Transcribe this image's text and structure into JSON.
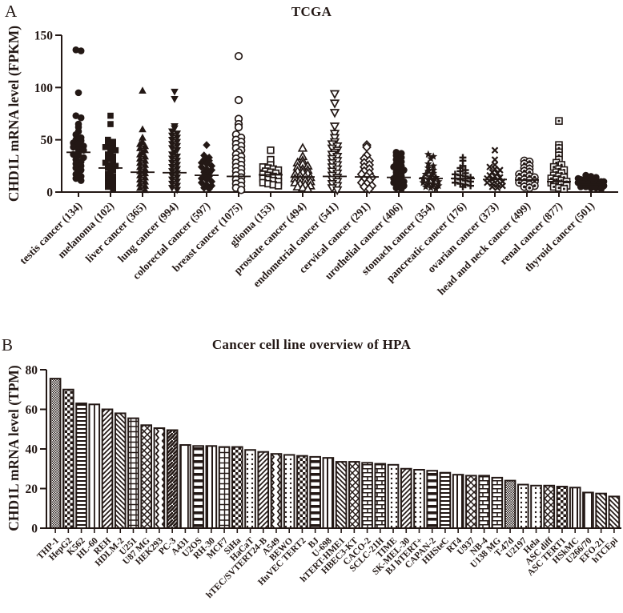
{
  "ink_color": "#231815",
  "chart_data": [
    {
      "type": "scatter",
      "panel_label": "A",
      "title": "TCGA",
      "ylabel": "CHD1L mRNA level (FPKM)",
      "ylim": [
        0,
        150
      ],
      "yticks": [
        0,
        50,
        100,
        150
      ],
      "legend": "none",
      "grid": false,
      "series": [
        {
          "category": "testis cancer (134)",
          "marker": "circle-filled",
          "median": 38,
          "values": [
            136,
            135,
            95,
            73,
            71,
            65,
            62,
            58,
            55,
            52,
            50,
            49,
            47,
            46,
            44,
            43,
            41,
            40,
            38,
            36,
            35,
            33,
            31,
            29,
            27,
            25,
            23,
            21,
            19,
            17,
            15,
            13,
            11
          ]
        },
        {
          "category": "melanoma (102)",
          "marker": "square-filled",
          "median": 23,
          "values": [
            73,
            65,
            50,
            48,
            46,
            45,
            43,
            42,
            40,
            38,
            36,
            34,
            32,
            30,
            28,
            26,
            25,
            23,
            21,
            19,
            17,
            15,
            13,
            11,
            9,
            7,
            5,
            3
          ]
        },
        {
          "category": "liver cancer (365)",
          "marker": "triangle-up-filled",
          "median": 19,
          "values": [
            97,
            60,
            52,
            48,
            46,
            44,
            42,
            40,
            38,
            36,
            34,
            32,
            30,
            28,
            26,
            24,
            22,
            20,
            18,
            16,
            14,
            12,
            10,
            8,
            6,
            4,
            2
          ]
        },
        {
          "category": "lung cancer (994)",
          "marker": "triangle-down-filled",
          "median": 18.5,
          "values": [
            96,
            89,
            63,
            61,
            58,
            56,
            54,
            52,
            50,
            48,
            46,
            44,
            42,
            40,
            38,
            36,
            34,
            32,
            30,
            28,
            26,
            24,
            22,
            20,
            18,
            16,
            14,
            12,
            10,
            8,
            6,
            4,
            2
          ]
        },
        {
          "category": "colorectal cancer (597)",
          "marker": "diamond-filled",
          "median": 16,
          "values": [
            45,
            35,
            33,
            31,
            30,
            28,
            27,
            25,
            24,
            22,
            21,
            19,
            18,
            16,
            15,
            13,
            12,
            10,
            9,
            7,
            6,
            4,
            3
          ]
        },
        {
          "category": "breast cancer (1075)",
          "marker": "circle-open",
          "median": 15,
          "values": [
            130,
            88,
            70,
            65,
            62,
            55,
            52,
            50,
            48,
            46,
            44,
            42,
            40,
            38,
            36,
            34,
            32,
            30,
            28,
            26,
            24,
            22,
            20,
            18,
            16,
            14,
            12,
            10,
            8,
            6,
            4,
            2
          ]
        },
        {
          "category": "glioma (153)",
          "marker": "square-open",
          "median": 16.5,
          "values": [
            40,
            31,
            26,
            24,
            23,
            22,
            21,
            20,
            19,
            18,
            17,
            16,
            15,
            14,
            13,
            12,
            11,
            10,
            9,
            8,
            7,
            6
          ]
        },
        {
          "category": "prostate cancer (494)",
          "marker": "triangle-up-open",
          "median": 14.5,
          "values": [
            42,
            34,
            30,
            28,
            27,
            25,
            24,
            22,
            21,
            20,
            19,
            18,
            17,
            16,
            15,
            14,
            13,
            12,
            11,
            10,
            9,
            8,
            7,
            6,
            5,
            4,
            3
          ]
        },
        {
          "category": "endometrial cancer (541)",
          "marker": "triangle-down-open",
          "median": 15,
          "values": [
            94,
            85,
            76,
            63,
            56,
            52,
            48,
            46,
            44,
            42,
            40,
            38,
            36,
            34,
            32,
            30,
            28,
            26,
            24,
            22,
            20,
            18,
            16,
            14,
            12,
            10,
            8,
            6,
            4,
            2
          ]
        },
        {
          "category": "cervical cancer (291)",
          "marker": "diamond-open",
          "median": 14.5,
          "values": [
            45,
            43,
            35,
            32,
            30,
            28,
            26,
            24,
            22,
            20,
            18,
            17,
            15,
            14,
            12,
            11,
            9,
            8,
            6,
            5,
            3
          ]
        },
        {
          "category": "urothelial cancer (406)",
          "marker": "circle-filled",
          "median": 14,
          "values": [
            38,
            37,
            35,
            33,
            31,
            29,
            27,
            25,
            24,
            22,
            21,
            19,
            18,
            16,
            15,
            13,
            12,
            10,
            9,
            7,
            6,
            4,
            3
          ]
        },
        {
          "category": "stomach cancer (354)",
          "marker": "star-filled",
          "median": 13,
          "values": [
            36,
            34,
            32,
            27,
            25,
            23,
            21,
            20,
            18,
            17,
            15,
            14,
            13,
            12,
            11,
            10,
            9,
            8,
            7,
            6,
            5,
            4,
            3
          ]
        },
        {
          "category": "pancreatic cancer (176)",
          "marker": "plus",
          "median": 13,
          "values": [
            33,
            30,
            25,
            23,
            21,
            20,
            18,
            17,
            16,
            15,
            14,
            13,
            12,
            11,
            10,
            9,
            8,
            7,
            6,
            5
          ]
        },
        {
          "category": "ovarian cancer (373)",
          "marker": "cross",
          "median": 12,
          "values": [
            40,
            31,
            26,
            24,
            22,
            21,
            19,
            18,
            16,
            15,
            14,
            13,
            12,
            11,
            10,
            9,
            8,
            7,
            6,
            5,
            4
          ]
        },
        {
          "category": "head and neck cancer (499)",
          "marker": "circle-dot",
          "median": 11.5,
          "values": [
            30,
            29,
            27,
            25,
            23,
            22,
            20,
            19,
            17,
            16,
            15,
            14,
            13,
            12,
            11,
            10,
            9,
            8,
            7,
            6,
            5,
            4
          ]
        },
        {
          "category": "renal cancer (877)",
          "marker": "square-dot",
          "median": 10,
          "values": [
            68,
            45,
            42,
            38,
            35,
            31,
            28,
            26,
            24,
            22,
            21,
            19,
            18,
            16,
            15,
            14,
            13,
            12,
            11,
            10,
            9,
            8,
            7,
            6,
            5,
            4,
            3
          ]
        },
        {
          "category": "thyroid cancer (501)",
          "marker": "circle-filled",
          "median": 7.5,
          "values": [
            16,
            15,
            14,
            13,
            12,
            12,
            11,
            11,
            10,
            10,
            9,
            9,
            8,
            8,
            7,
            7,
            6,
            6,
            5,
            5,
            4,
            4,
            3
          ]
        }
      ]
    },
    {
      "type": "bar",
      "panel_label": "B",
      "title": "Cancer cell line overview of HPA",
      "ylabel": "CHD1L mRNA level (TPM)",
      "ylim": [
        0,
        80
      ],
      "yticks": [
        0,
        20,
        40,
        60,
        80
      ],
      "legend": "none",
      "grid": false,
      "categories": [
        "THP-1",
        "HepG2",
        "K562",
        "HL-60",
        "REH",
        "HDLM-2",
        "U251",
        "U87 MG",
        "HEK293",
        "PC-3",
        "A431",
        "U2OS",
        "RH-30",
        "MCF7",
        "SiHa",
        "HaCaT",
        "hTEC/SVTERT24-B",
        "A549",
        "BEWO",
        "HuVEC TERT2",
        "BJ",
        "U-698",
        "hTERT-HME1",
        "HBEC3-KT",
        "CACO-2",
        "SCLC-21H",
        "TIME",
        "SK-MEL-30",
        "BJ hTERT+",
        "CAPAN-2",
        "HHSteC",
        "RT4",
        "U937",
        "NB-4",
        "U138 MG",
        "T-47d",
        "U2197",
        "Hela",
        "ASC diff",
        "ASC TERT1",
        "HSkMC",
        "U266/70",
        "EFO-21",
        "hTCEpi"
      ],
      "values": [
        75.5,
        70,
        63,
        62.5,
        60,
        58,
        55.5,
        52,
        50.5,
        49.5,
        42,
        41.5,
        41.5,
        41,
        41,
        39.5,
        38.5,
        37.5,
        37,
        36.5,
        36,
        35.5,
        33.5,
        33.5,
        33,
        32.5,
        32,
        30,
        29.5,
        29,
        28,
        27,
        26.5,
        26.5,
        25.5,
        24,
        22,
        21.5,
        21.5,
        21,
        20.5,
        18,
        17.5,
        16
      ],
      "bar_patterns": [
        "checkerFine",
        "checker",
        "hlines",
        "vlinesSparse",
        "diagUp",
        "diagDown",
        "grid",
        "xhatch",
        "zigzagV",
        "herringbone",
        "vlinesSparse",
        "hlinesThick",
        "vlines",
        "grid",
        "checker",
        "dots",
        "diagUp",
        "zigzagV",
        "dots",
        "checker",
        "hlinesThick",
        "vlines",
        "diagDown",
        "xhatch",
        "bricks",
        "bricks",
        "dots",
        "diagUp",
        "dots",
        "hlinesThick",
        "hlines",
        "vlines",
        "xhatch",
        "bricks",
        "bricks",
        "checkerFine",
        "dots",
        "dots",
        "xhatch",
        "checker",
        "vlines",
        "vlinesSparse",
        "diagDown",
        "diagDown"
      ]
    }
  ]
}
